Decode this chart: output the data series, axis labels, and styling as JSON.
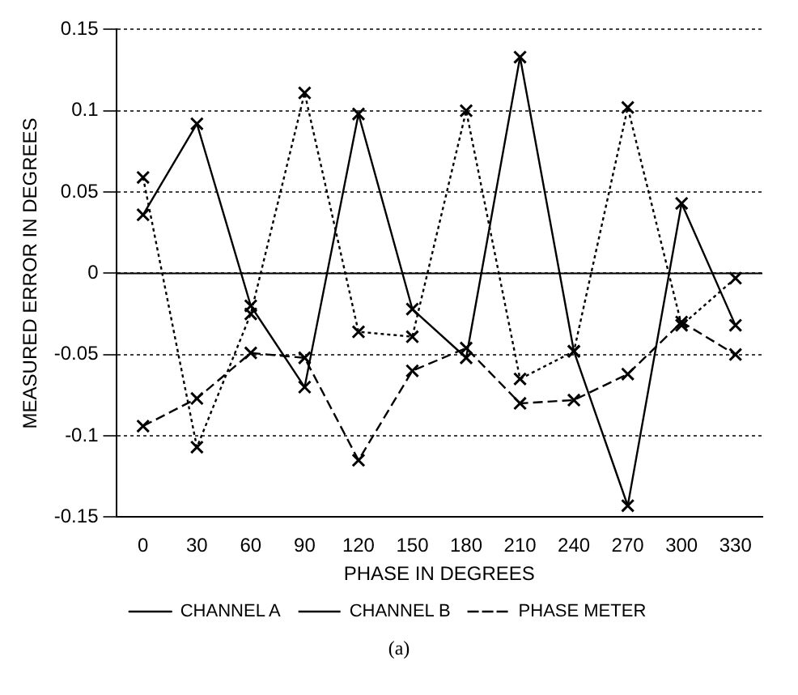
{
  "chart_data": {
    "type": "line",
    "xlabel": "PHASE IN DEGREES",
    "ylabel": "MEASURED ERROR IN DEGREES",
    "categories": [
      "0",
      "30",
      "60",
      "90",
      "120",
      "150",
      "180",
      "210",
      "240",
      "270",
      "300",
      "330"
    ],
    "series": [
      {
        "name": "CHANNEL A",
        "color": "#000000",
        "line_style": "solid",
        "marker": "cross",
        "values": [
          0.036,
          0.092,
          -0.02,
          -0.07,
          0.098,
          -0.022,
          -0.052,
          0.133,
          -0.048,
          -0.143,
          0.043,
          -0.032
        ]
      },
      {
        "name": "CHANNEL B",
        "color": "#000000",
        "line_style": "dotted",
        "marker": "cross",
        "values": [
          0.059,
          -0.107,
          -0.025,
          0.111,
          -0.036,
          -0.039,
          0.1,
          -0.065,
          -0.048,
          0.102,
          -0.032,
          -0.003
        ]
      },
      {
        "name": "PHASE METER",
        "color": "#000000",
        "line_style": "dashed",
        "marker": "cross",
        "values": [
          -0.094,
          -0.077,
          -0.049,
          -0.052,
          -0.115,
          -0.06,
          -0.046,
          -0.08,
          -0.078,
          -0.062,
          -0.03,
          -0.05
        ]
      }
    ],
    "ylim": [
      -0.15,
      0.15
    ],
    "yticks": [
      -0.15,
      -0.1,
      -0.05,
      0,
      0.05,
      0.1,
      0.15
    ],
    "grid": "y",
    "legend": "bottom",
    "ref_lines": [
      {
        "axis": "y",
        "value": 0,
        "line_style": "solid",
        "color": "#000000"
      }
    ],
    "annotations": [
      "(a)"
    ]
  }
}
